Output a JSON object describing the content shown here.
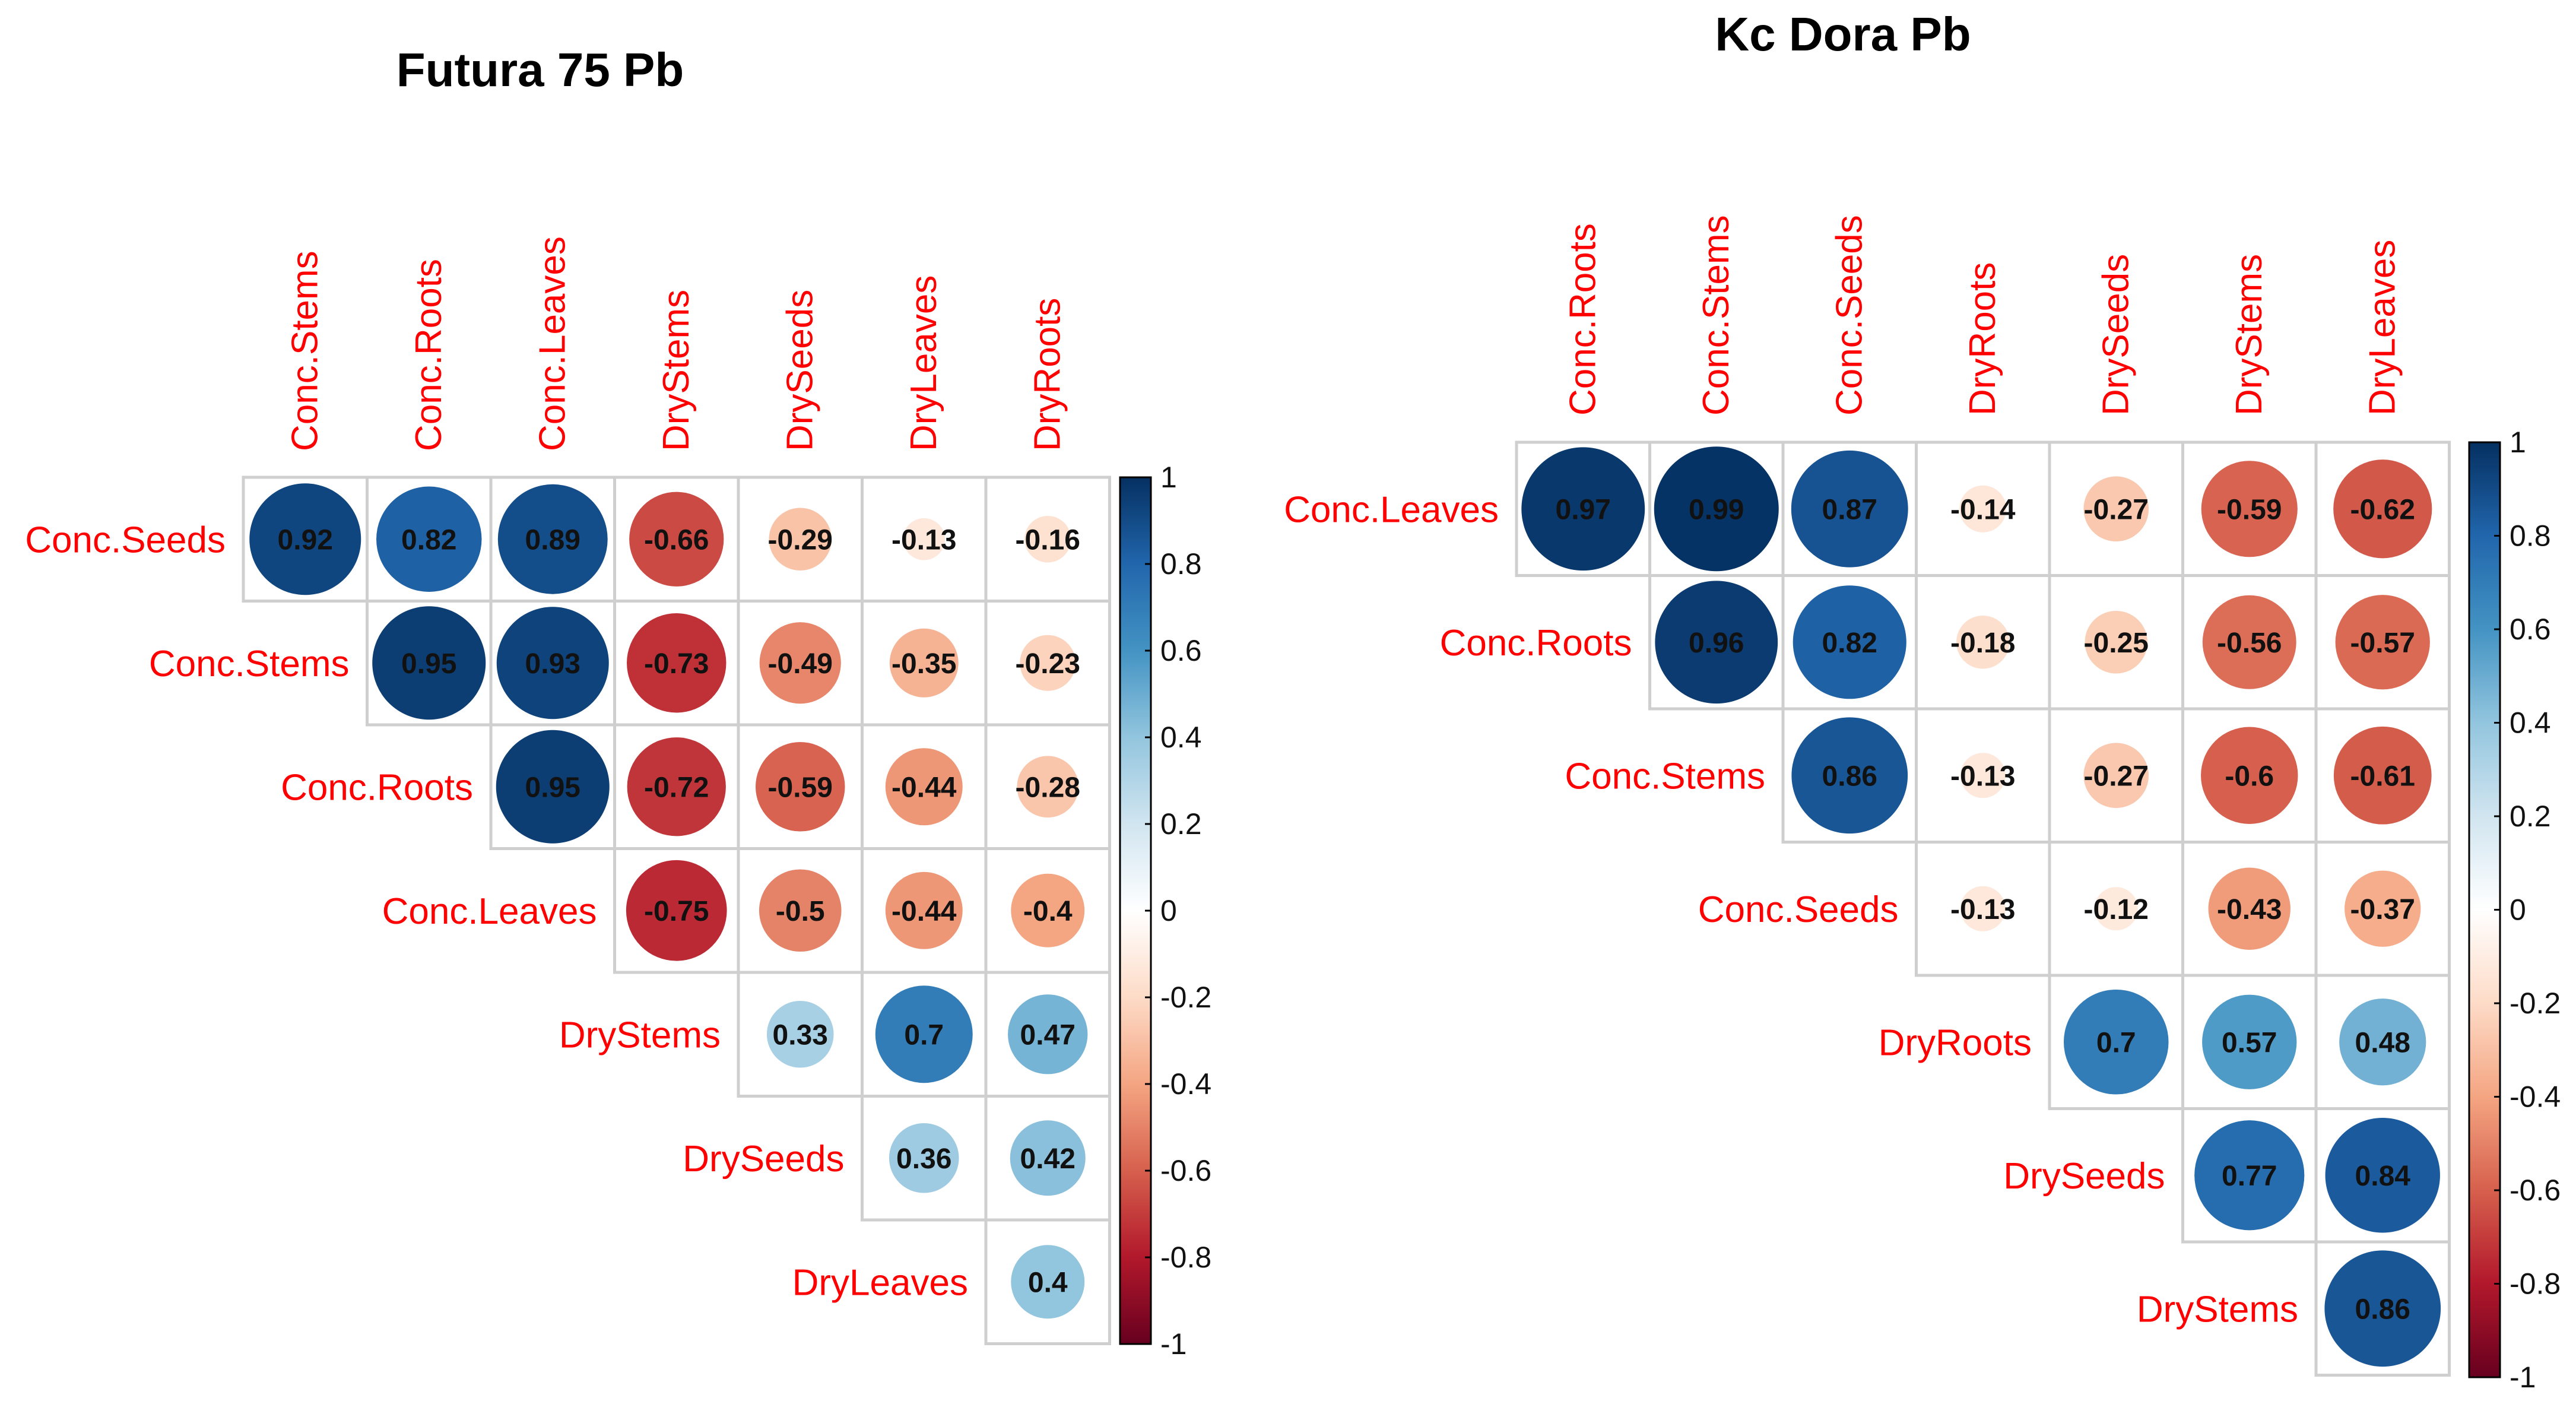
{
  "chart_data": [
    {
      "type": "heatmap",
      "title": "Futura 75 Pb",
      "columns": [
        "Conc.Stems",
        "Conc.Roots",
        "Conc.Leaves",
        "DryStems",
        "DrySeeds",
        "DryLeaves",
        "DryRoots"
      ],
      "rows": [
        "Conc.Seeds",
        "Conc.Stems",
        "Conc.Roots",
        "Conc.Leaves",
        "DryStems",
        "DrySeeds",
        "DryLeaves"
      ],
      "values": [
        [
          0.92,
          0.82,
          0.89,
          -0.66,
          -0.29,
          -0.13,
          -0.16
        ],
        [
          null,
          0.95,
          0.93,
          -0.73,
          -0.49,
          -0.35,
          -0.23
        ],
        [
          null,
          null,
          0.95,
          -0.72,
          -0.59,
          -0.44,
          -0.28
        ],
        [
          null,
          null,
          null,
          -0.75,
          -0.5,
          -0.44,
          -0.4
        ],
        [
          null,
          null,
          null,
          null,
          0.33,
          0.7,
          0.47
        ],
        [
          null,
          null,
          null,
          null,
          null,
          0.36,
          0.42
        ],
        [
          null,
          null,
          null,
          null,
          null,
          null,
          0.4
        ]
      ],
      "labels": [
        [
          "0.92",
          "0.82",
          "0.89",
          "-0.66",
          "-0.29",
          "-0.13",
          "-0.16"
        ],
        [
          "",
          "0.95",
          "0.93",
          "-0.73",
          "-0.49",
          "-0.35",
          "-0.23"
        ],
        [
          "",
          "",
          "0.95",
          "-0.72",
          "-0.59",
          "-0.44",
          "-0.28"
        ],
        [
          "",
          "",
          "",
          "-0.75",
          "-0.5",
          "-0.44",
          "-0.4"
        ],
        [
          "",
          "",
          "",
          "",
          "0.33",
          "0.7",
          "0.47"
        ],
        [
          "",
          "",
          "",
          "",
          "",
          "0.36",
          "0.42"
        ],
        [
          "",
          "",
          "",
          "",
          "",
          "",
          "0.4"
        ]
      ],
      "colorbar": {
        "range": [
          -1,
          1
        ],
        "ticks": [
          "1",
          "0.8",
          "0.6",
          "0.4",
          "0.2",
          "0",
          "-0.2",
          "-0.4",
          "-0.6",
          "-0.8",
          "-1"
        ]
      }
    },
    {
      "type": "heatmap",
      "title": "Kc Dora Pb",
      "columns": [
        "Conc.Roots",
        "Conc.Stems",
        "Conc.Seeds",
        "DryRoots",
        "DrySeeds",
        "DryStems",
        "DryLeaves"
      ],
      "rows": [
        "Conc.Leaves",
        "Conc.Roots",
        "Conc.Stems",
        "Conc.Seeds",
        "DryRoots",
        "DrySeeds",
        "DryStems"
      ],
      "values": [
        [
          0.97,
          0.99,
          0.87,
          -0.14,
          -0.27,
          -0.59,
          -0.62
        ],
        [
          null,
          0.96,
          0.82,
          -0.18,
          -0.25,
          -0.56,
          -0.57
        ],
        [
          null,
          null,
          0.86,
          -0.13,
          -0.27,
          -0.6,
          -0.61
        ],
        [
          null,
          null,
          null,
          -0.13,
          -0.12,
          -0.43,
          -0.37
        ],
        [
          null,
          null,
          null,
          null,
          0.7,
          0.57,
          0.48
        ],
        [
          null,
          null,
          null,
          null,
          null,
          0.77,
          0.84
        ],
        [
          null,
          null,
          null,
          null,
          null,
          null,
          0.86
        ]
      ],
      "labels": [
        [
          "0.97",
          "0.99",
          "0.87",
          "-0.14",
          "-0.27",
          "-0.59",
          "-0.62"
        ],
        [
          "",
          "0.96",
          "0.82",
          "-0.18",
          "-0.25",
          "-0.56",
          "-0.57"
        ],
        [
          "",
          "",
          "0.86",
          "-0.13",
          "-0.27",
          "-0.6",
          "-0.61"
        ],
        [
          "",
          "",
          "",
          "-0.13",
          "-0.12",
          "-0.43",
          "-0.37"
        ],
        [
          "",
          "",
          "",
          "",
          "0.7",
          "0.57",
          "0.48"
        ],
        [
          "",
          "",
          "",
          "",
          "",
          "0.77",
          "0.84"
        ],
        [
          "",
          "",
          "",
          "",
          "",
          "",
          "0.86"
        ]
      ],
      "colorbar": {
        "range": [
          -1,
          1
        ],
        "ticks": [
          "1",
          "0.8",
          "0.6",
          "0.4",
          "0.2",
          "0",
          "-0.2",
          "-0.4",
          "-0.6",
          "-0.8",
          "-1"
        ]
      }
    }
  ],
  "colors": {
    "label_color": "#ff0000",
    "grid_color": "#cfcfcf",
    "scale": [
      "#67001f",
      "#b2182b",
      "#d6604d",
      "#f4a582",
      "#fddbc7",
      "#ffffff",
      "#d1e5f0",
      "#92c5de",
      "#4393c3",
      "#2166ac",
      "#053061"
    ]
  }
}
